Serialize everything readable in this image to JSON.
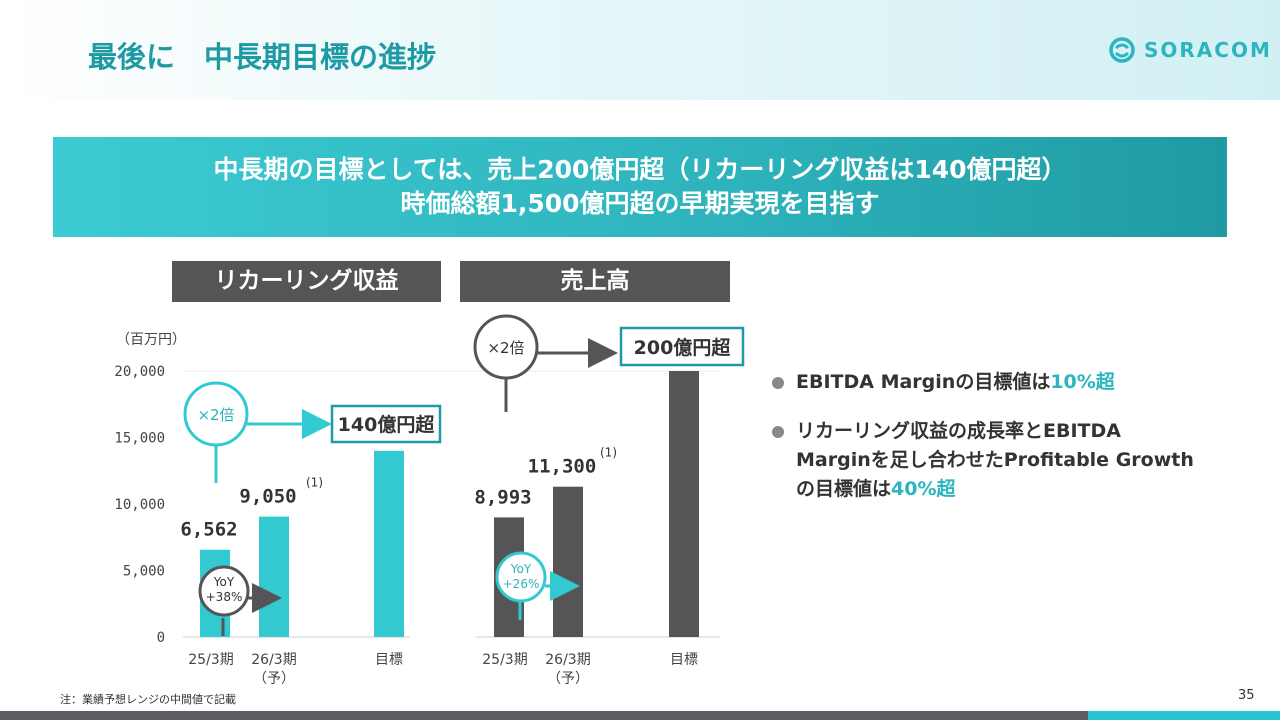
{
  "header": {
    "title": "最後に　中長期目標の進捗",
    "logo_text": "SORACOM"
  },
  "banner": {
    "line1": "中長期の目標としては、売上200億円超（リカーリング収益は140億円超）",
    "line2": "時価総額1,500億円超の早期実現を目指す"
  },
  "charts": {
    "unit": "（百万円）",
    "recurring": {
      "heading": "リカーリング収益",
      "target_label": "140億円超",
      "multiplier": "×2倍",
      "yoy_label": "YoY",
      "yoy_value": "+38%",
      "bar_labels": [
        "6,562",
        "9,050",
        ""
      ],
      "note_marks": [
        "",
        "(1)",
        ""
      ]
    },
    "revenue": {
      "heading": "売上高",
      "target_label": "200億円超",
      "multiplier": "×2倍",
      "yoy_label": "YoY",
      "yoy_value": "+26%",
      "bar_labels": [
        "8,993",
        "11,300",
        ""
      ],
      "note_marks": [
        "",
        "(1)",
        ""
      ]
    }
  },
  "chart_data": [
    {
      "type": "bar",
      "title": "リカーリング収益",
      "categories": [
        "25/3期",
        "26/3期\n（予）",
        "目標"
      ],
      "values": [
        6562,
        9050,
        14000
      ],
      "ylabel": "（百万円）",
      "ylim": [
        0,
        20000
      ],
      "yticks": [
        "0",
        "5,000",
        "10,000",
        "15,000",
        "20,000"
      ],
      "color": "#33c9d1"
    },
    {
      "type": "bar",
      "title": "売上高",
      "categories": [
        "25/3期",
        "26/3期\n（予）",
        "目標"
      ],
      "values": [
        8993,
        11300,
        20000
      ],
      "ylim": [
        0,
        20000
      ],
      "color": "#555558"
    }
  ],
  "bullets": [
    {
      "text": "EBITDA Marginの目標値は",
      "highlight": "10%超"
    },
    {
      "text": "リカーリング収益の成長率とEBITDA Marginを足し合わせたProfitable Growthの目標値は",
      "highlight": "40%超"
    }
  ],
  "footnote": "注：業績予想レンジの中間値で記載",
  "page_number": "35",
  "colors": {
    "teal": "#33c9d1",
    "dark": "#555558",
    "title": "#1d9aa3"
  }
}
